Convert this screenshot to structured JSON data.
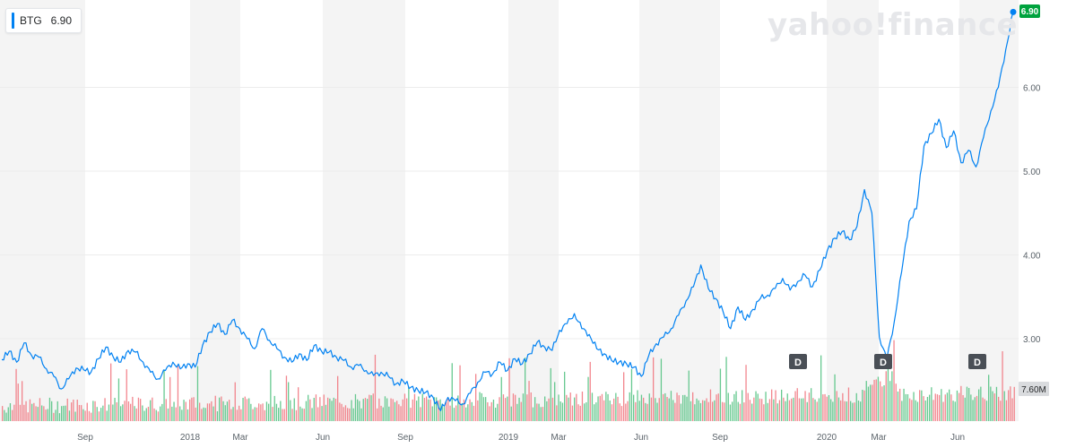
{
  "legend": {
    "symbol": "BTG",
    "value": "6.90"
  },
  "watermark": "yahoo!finance",
  "current_price_label": "6.90",
  "volume_label": "7.60M",
  "dividend_label": "D",
  "colors": {
    "line": "#0081f2",
    "current_tag": "#00a33e",
    "volume_up": "#4cbf7d",
    "volume_down": "#f0717a",
    "band": "#f4f4f4",
    "grid": "#ececec",
    "axis_text": "#5b636a"
  },
  "chart_data": {
    "type": "line",
    "title": "",
    "xlabel": "",
    "ylabel": "",
    "x_tick_labels": [
      "Sep",
      "2018",
      "Mar",
      "Jun",
      "Sep",
      "2019",
      "Mar",
      "Jun",
      "Sep",
      "2020",
      "Mar",
      "Jun"
    ],
    "y_tick_labels": [
      "3.00",
      "4.00",
      "5.00",
      "6.00"
    ],
    "ylim": [
      2.1,
      7.0
    ],
    "grid": true,
    "legend_position": "top-left",
    "series": [
      {
        "name": "BTG",
        "values": [
          2.75,
          2.85,
          2.72,
          2.95,
          2.8,
          2.78,
          2.64,
          2.55,
          2.4,
          2.52,
          2.65,
          2.63,
          2.6,
          2.76,
          2.9,
          2.78,
          2.72,
          2.86,
          2.84,
          2.72,
          2.6,
          2.52,
          2.62,
          2.72,
          2.64,
          2.7,
          2.66,
          2.92,
          3.08,
          3.18,
          3.05,
          3.22,
          3.12,
          3.0,
          2.88,
          3.12,
          2.98,
          2.88,
          2.78,
          2.72,
          2.82,
          2.74,
          2.92,
          2.85,
          2.84,
          2.78,
          2.74,
          2.66,
          2.68,
          2.62,
          2.56,
          2.6,
          2.55,
          2.46,
          2.49,
          2.42,
          2.38,
          2.36,
          2.3,
          2.14,
          2.3,
          2.26,
          2.22,
          2.35,
          2.48,
          2.6,
          2.58,
          2.72,
          2.62,
          2.76,
          2.7,
          2.82,
          2.96,
          2.9,
          2.86,
          3.1,
          3.18,
          3.3,
          3.12,
          3.05,
          2.88,
          2.82,
          2.74,
          2.72,
          2.7,
          2.66,
          2.55,
          2.8,
          2.94,
          3.02,
          3.12,
          3.28,
          3.45,
          3.62,
          3.88,
          3.6,
          3.48,
          3.32,
          3.12,
          3.38,
          3.22,
          3.35,
          3.48,
          3.52,
          3.6,
          3.72,
          3.58,
          3.68,
          3.76,
          3.62,
          3.82,
          4.05,
          4.2,
          4.28,
          4.18,
          4.34,
          4.78,
          4.5,
          3.02,
          2.75,
          3.2,
          3.8,
          4.4,
          4.55,
          5.3,
          5.45,
          5.62,
          5.28,
          5.48,
          5.1,
          5.25,
          5.05,
          5.4,
          5.72,
          6.0,
          6.45,
          6.9
        ]
      }
    ]
  }
}
